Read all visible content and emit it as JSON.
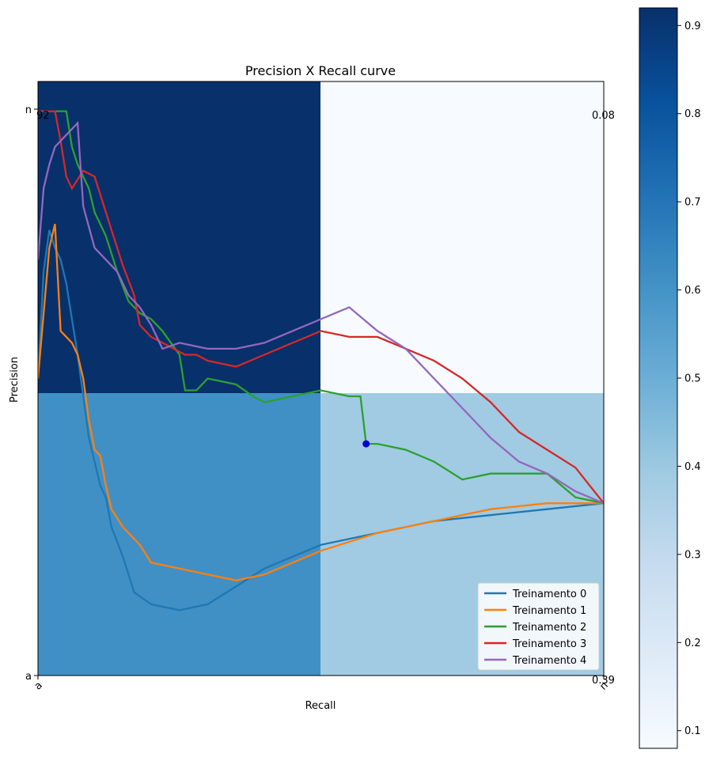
{
  "chart_data": {
    "type": "line",
    "title": "Precision X Recall curve",
    "xlabel": "Recall",
    "ylabel": "Precision",
    "x_ticks": [
      "a",
      "n"
    ],
    "y_ticks": [
      "n",
      "a"
    ],
    "heatmap": {
      "cells": [
        {
          "row": 0,
          "col": 0,
          "value": 0.92,
          "label": "92"
        },
        {
          "row": 0,
          "col": 1,
          "value": 0.08,
          "label": "0.08"
        },
        {
          "row": 1,
          "col": 0,
          "value": 0.61,
          "label": ""
        },
        {
          "row": 1,
          "col": 1,
          "value": 0.39,
          "label": "0.39"
        }
      ],
      "colorbar": {
        "min": 0.08,
        "max": 0.92,
        "ticks": [
          "0.1",
          "0.2",
          "0.3",
          "0.4",
          "0.5",
          "0.6",
          "0.7",
          "0.8",
          "0.9"
        ]
      }
    },
    "legend": {
      "placement": "bottom-right"
    },
    "marker": {
      "x": 0.58,
      "y": 0.39,
      "color": "#0000cc"
    },
    "series": [
      {
        "name": "Treinamento 0",
        "color": "#1f77b4",
        "points": [
          [
            0.0,
            0.5
          ],
          [
            0.01,
            0.68
          ],
          [
            0.02,
            0.75
          ],
          [
            0.03,
            0.72
          ],
          [
            0.04,
            0.7
          ],
          [
            0.05,
            0.66
          ],
          [
            0.06,
            0.6
          ],
          [
            0.07,
            0.54
          ],
          [
            0.08,
            0.47
          ],
          [
            0.09,
            0.4
          ],
          [
            0.1,
            0.36
          ],
          [
            0.11,
            0.32
          ],
          [
            0.12,
            0.3
          ],
          [
            0.13,
            0.25
          ],
          [
            0.15,
            0.2
          ],
          [
            0.17,
            0.14
          ],
          [
            0.2,
            0.12
          ],
          [
            0.25,
            0.11
          ],
          [
            0.3,
            0.12
          ],
          [
            0.35,
            0.15
          ],
          [
            0.4,
            0.18
          ],
          [
            0.5,
            0.22
          ],
          [
            0.6,
            0.24
          ],
          [
            0.7,
            0.26
          ],
          [
            0.8,
            0.27
          ],
          [
            0.9,
            0.28
          ],
          [
            1.0,
            0.29
          ]
        ]
      },
      {
        "name": "Treinamento 1",
        "color": "#ff7f0e",
        "points": [
          [
            0.0,
            0.5
          ],
          [
            0.02,
            0.72
          ],
          [
            0.03,
            0.76
          ],
          [
            0.04,
            0.58
          ],
          [
            0.05,
            0.57
          ],
          [
            0.06,
            0.56
          ],
          [
            0.07,
            0.54
          ],
          [
            0.08,
            0.5
          ],
          [
            0.09,
            0.43
          ],
          [
            0.1,
            0.38
          ],
          [
            0.11,
            0.37
          ],
          [
            0.12,
            0.32
          ],
          [
            0.13,
            0.28
          ],
          [
            0.15,
            0.25
          ],
          [
            0.18,
            0.22
          ],
          [
            0.2,
            0.19
          ],
          [
            0.25,
            0.18
          ],
          [
            0.3,
            0.17
          ],
          [
            0.35,
            0.16
          ],
          [
            0.4,
            0.17
          ],
          [
            0.5,
            0.21
          ],
          [
            0.6,
            0.24
          ],
          [
            0.7,
            0.26
          ],
          [
            0.8,
            0.28
          ],
          [
            0.9,
            0.29
          ],
          [
            0.95,
            0.29
          ],
          [
            1.0,
            0.29
          ]
        ]
      },
      {
        "name": "Treinamento 2",
        "color": "#2ca02c",
        "points": [
          [
            0.0,
            0.95
          ],
          [
            0.05,
            0.95
          ],
          [
            0.06,
            0.89
          ],
          [
            0.07,
            0.86
          ],
          [
            0.08,
            0.84
          ],
          [
            0.09,
            0.82
          ],
          [
            0.1,
            0.78
          ],
          [
            0.12,
            0.74
          ],
          [
            0.14,
            0.68
          ],
          [
            0.16,
            0.63
          ],
          [
            0.18,
            0.61
          ],
          [
            0.2,
            0.6
          ],
          [
            0.22,
            0.58
          ],
          [
            0.25,
            0.54
          ],
          [
            0.26,
            0.48
          ],
          [
            0.28,
            0.48
          ],
          [
            0.3,
            0.5
          ],
          [
            0.35,
            0.49
          ],
          [
            0.38,
            0.47
          ],
          [
            0.4,
            0.46
          ],
          [
            0.45,
            0.47
          ],
          [
            0.5,
            0.48
          ],
          [
            0.55,
            0.47
          ],
          [
            0.57,
            0.47
          ],
          [
            0.58,
            0.39
          ],
          [
            0.6,
            0.39
          ],
          [
            0.65,
            0.38
          ],
          [
            0.7,
            0.36
          ],
          [
            0.75,
            0.33
          ],
          [
            0.8,
            0.34
          ],
          [
            0.85,
            0.34
          ],
          [
            0.9,
            0.34
          ],
          [
            0.95,
            0.3
          ],
          [
            1.0,
            0.29
          ]
        ]
      },
      {
        "name": "Treinamento 3",
        "color": "#d62728",
        "points": [
          [
            0.0,
            0.95
          ],
          [
            0.03,
            0.95
          ],
          [
            0.04,
            0.9
          ],
          [
            0.05,
            0.84
          ],
          [
            0.06,
            0.82
          ],
          [
            0.08,
            0.85
          ],
          [
            0.1,
            0.84
          ],
          [
            0.12,
            0.78
          ],
          [
            0.13,
            0.75
          ],
          [
            0.15,
            0.69
          ],
          [
            0.17,
            0.64
          ],
          [
            0.18,
            0.59
          ],
          [
            0.2,
            0.57
          ],
          [
            0.22,
            0.56
          ],
          [
            0.24,
            0.55
          ],
          [
            0.26,
            0.54
          ],
          [
            0.28,
            0.54
          ],
          [
            0.3,
            0.53
          ],
          [
            0.35,
            0.52
          ],
          [
            0.4,
            0.54
          ],
          [
            0.45,
            0.56
          ],
          [
            0.5,
            0.58
          ],
          [
            0.55,
            0.57
          ],
          [
            0.6,
            0.57
          ],
          [
            0.65,
            0.55
          ],
          [
            0.7,
            0.53
          ],
          [
            0.75,
            0.5
          ],
          [
            0.8,
            0.46
          ],
          [
            0.85,
            0.41
          ],
          [
            0.9,
            0.38
          ],
          [
            0.95,
            0.35
          ],
          [
            1.0,
            0.29
          ]
        ]
      },
      {
        "name": "Treinamento 4",
        "color": "#9467bd",
        "points": [
          [
            0.0,
            0.7
          ],
          [
            0.01,
            0.82
          ],
          [
            0.02,
            0.86
          ],
          [
            0.03,
            0.89
          ],
          [
            0.05,
            0.91
          ],
          [
            0.07,
            0.93
          ],
          [
            0.08,
            0.79
          ],
          [
            0.1,
            0.72
          ],
          [
            0.12,
            0.7
          ],
          [
            0.14,
            0.68
          ],
          [
            0.16,
            0.64
          ],
          [
            0.18,
            0.62
          ],
          [
            0.2,
            0.59
          ],
          [
            0.22,
            0.55
          ],
          [
            0.25,
            0.56
          ],
          [
            0.3,
            0.55
          ],
          [
            0.35,
            0.55
          ],
          [
            0.4,
            0.56
          ],
          [
            0.45,
            0.58
          ],
          [
            0.5,
            0.6
          ],
          [
            0.55,
            0.62
          ],
          [
            0.6,
            0.58
          ],
          [
            0.65,
            0.55
          ],
          [
            0.7,
            0.5
          ],
          [
            0.75,
            0.45
          ],
          [
            0.8,
            0.4
          ],
          [
            0.85,
            0.36
          ],
          [
            0.9,
            0.34
          ],
          [
            0.95,
            0.31
          ],
          [
            1.0,
            0.29
          ]
        ]
      }
    ]
  }
}
